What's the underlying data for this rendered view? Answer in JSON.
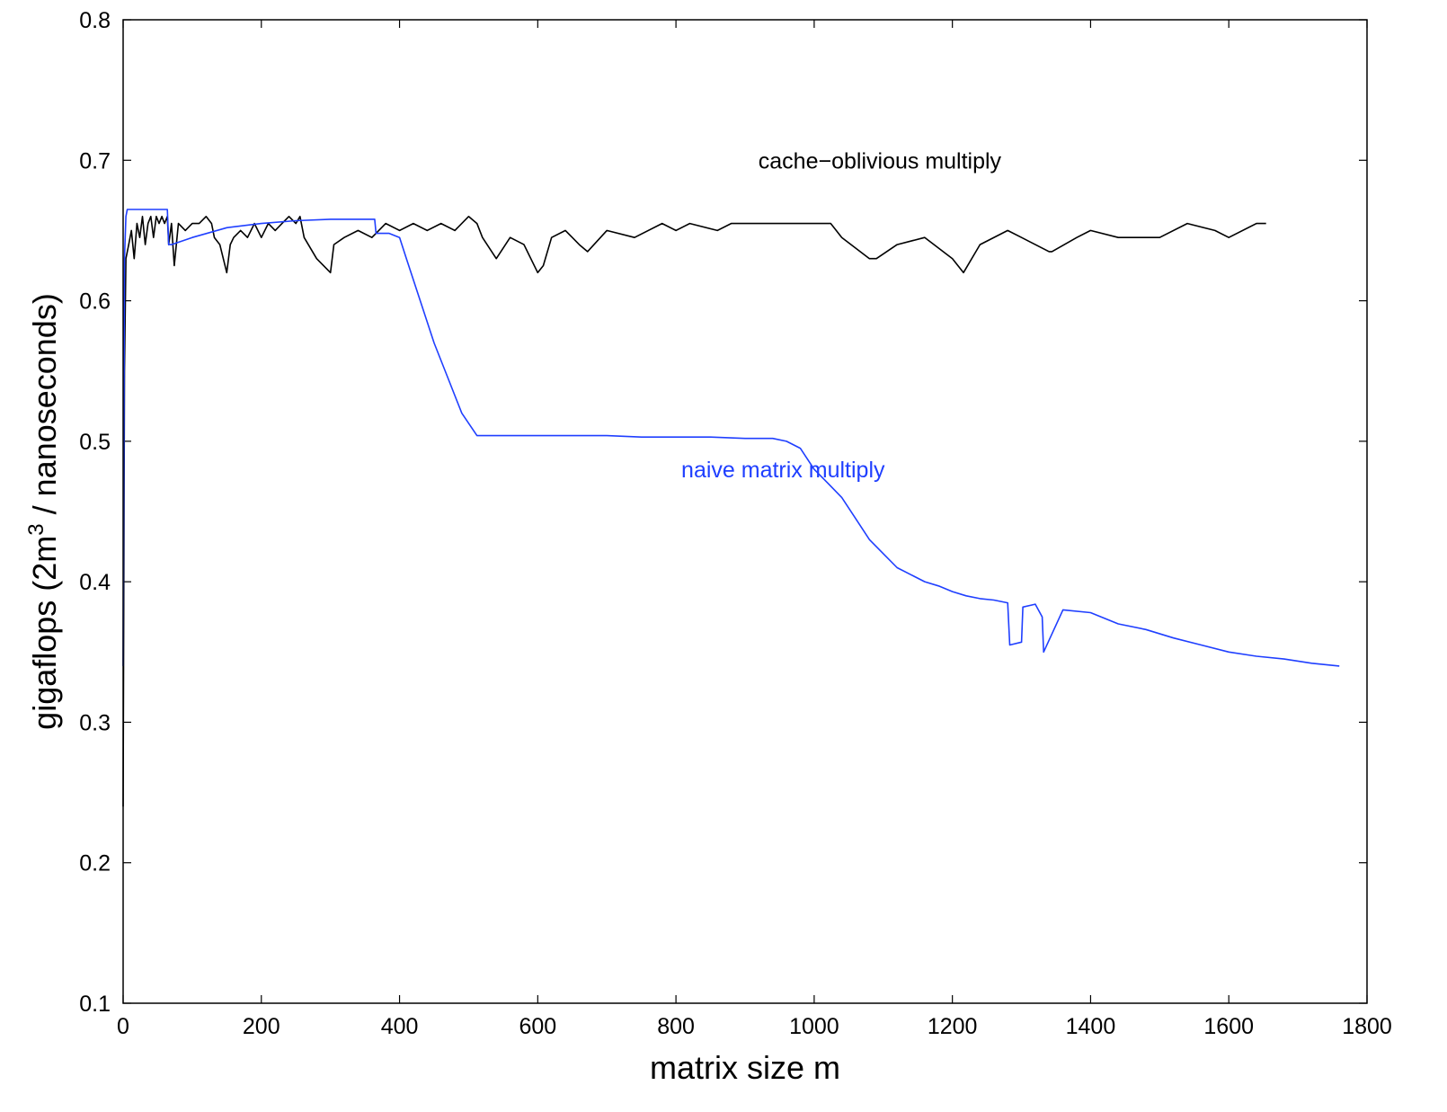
{
  "chart_data": {
    "type": "line",
    "xlabel": "matrix size m",
    "ylabel_main": "gigaflops (2m",
    "ylabel_sup": "3",
    "ylabel_rest": " / nanoseconds)",
    "xlim": [
      0,
      1800
    ],
    "ylim": [
      0.1,
      0.8
    ],
    "xticks": [
      0,
      200,
      400,
      600,
      800,
      1000,
      1200,
      1400,
      1600,
      1800
    ],
    "yticks": [
      0.1,
      0.2,
      0.3,
      0.4,
      0.5,
      0.6,
      0.7,
      0.8
    ],
    "yticks_text": [
      "0.1",
      "0.2",
      "0.3",
      "0.4",
      "0.5",
      "0.6",
      "0.7",
      "0.8"
    ],
    "grid": false,
    "series": [
      {
        "name": "cache-oblivious multiply",
        "color": "#000000",
        "x": [
          0,
          2,
          4,
          8,
          12,
          16,
          20,
          24,
          28,
          32,
          36,
          40,
          44,
          48,
          52,
          56,
          60,
          64,
          66,
          70,
          74,
          80,
          90,
          100,
          110,
          120,
          128,
          132,
          140,
          150,
          155,
          160,
          170,
          180,
          190,
          200,
          210,
          220,
          230,
          240,
          250,
          256,
          262,
          280,
          300,
          305,
          320,
          340,
          360,
          380,
          400,
          420,
          440,
          460,
          480,
          500,
          512,
          520,
          540,
          560,
          580,
          600,
          608,
          620,
          640,
          660,
          672,
          700,
          740,
          780,
          800,
          820,
          860,
          880,
          920,
          960,
          1000,
          1024,
          1040,
          1080,
          1090,
          1120,
          1160,
          1200,
          1216,
          1240,
          1280,
          1300,
          1340,
          1344,
          1380,
          1400,
          1440,
          1470,
          1500,
          1540,
          1580,
          1600,
          1640,
          1654
        ],
        "y": [
          0.24,
          0.55,
          0.63,
          0.64,
          0.65,
          0.63,
          0.655,
          0.645,
          0.66,
          0.64,
          0.655,
          0.66,
          0.645,
          0.66,
          0.655,
          0.66,
          0.655,
          0.66,
          0.64,
          0.655,
          0.625,
          0.655,
          0.65,
          0.655,
          0.655,
          0.66,
          0.655,
          0.645,
          0.64,
          0.62,
          0.64,
          0.645,
          0.65,
          0.645,
          0.655,
          0.645,
          0.655,
          0.65,
          0.655,
          0.66,
          0.655,
          0.66,
          0.645,
          0.63,
          0.62,
          0.64,
          0.645,
          0.65,
          0.645,
          0.655,
          0.65,
          0.655,
          0.65,
          0.655,
          0.65,
          0.66,
          0.655,
          0.645,
          0.63,
          0.645,
          0.64,
          0.62,
          0.625,
          0.645,
          0.65,
          0.64,
          0.635,
          0.65,
          0.645,
          0.655,
          0.65,
          0.655,
          0.65,
          0.655,
          0.655,
          0.655,
          0.655,
          0.655,
          0.645,
          0.63,
          0.63,
          0.64,
          0.645,
          0.63,
          0.62,
          0.64,
          0.65,
          0.645,
          0.635,
          0.635,
          0.645,
          0.65,
          0.645,
          0.645,
          0.645,
          0.655,
          0.65,
          0.645,
          0.655,
          0.655
        ]
      },
      {
        "name": "naive matrix multiply",
        "color": "#1f3fff",
        "x": [
          0,
          2,
          4,
          6,
          8,
          10,
          64,
          66,
          70,
          100,
          150,
          200,
          250,
          300,
          364,
          366,
          385,
          400,
          410,
          430,
          450,
          470,
          490,
          512,
          550,
          600,
          650,
          700,
          750,
          800,
          850,
          900,
          940,
          960,
          980,
          1000,
          1020,
          1040,
          1060,
          1080,
          1100,
          1120,
          1140,
          1160,
          1180,
          1200,
          1220,
          1240,
          1260,
          1280,
          1283,
          1300,
          1302,
          1320,
          1330,
          1332,
          1360,
          1400,
          1440,
          1480,
          1520,
          1560,
          1600,
          1640,
          1680,
          1720,
          1760
        ],
        "y": [
          0.34,
          0.63,
          0.66,
          0.665,
          0.665,
          0.665,
          0.665,
          0.64,
          0.64,
          0.645,
          0.652,
          0.655,
          0.657,
          0.658,
          0.658,
          0.648,
          0.648,
          0.645,
          0.63,
          0.6,
          0.57,
          0.545,
          0.52,
          0.504,
          0.504,
          0.504,
          0.504,
          0.504,
          0.503,
          0.503,
          0.503,
          0.502,
          0.502,
          0.5,
          0.495,
          0.48,
          0.47,
          0.46,
          0.445,
          0.43,
          0.42,
          0.41,
          0.405,
          0.4,
          0.397,
          0.393,
          0.39,
          0.388,
          0.387,
          0.385,
          0.355,
          0.357,
          0.382,
          0.384,
          0.375,
          0.35,
          0.38,
          0.378,
          0.37,
          0.366,
          0.36,
          0.355,
          0.35,
          0.347,
          0.345,
          0.342,
          0.34
        ]
      }
    ],
    "annotations": [
      {
        "text": "cache−oblivious multiply",
        "x": 1095,
        "y": 0.7,
        "color": "#000000"
      },
      {
        "text": "naive matrix multiply",
        "x": 955,
        "y": 0.48,
        "color": "#1f3fff"
      }
    ]
  }
}
